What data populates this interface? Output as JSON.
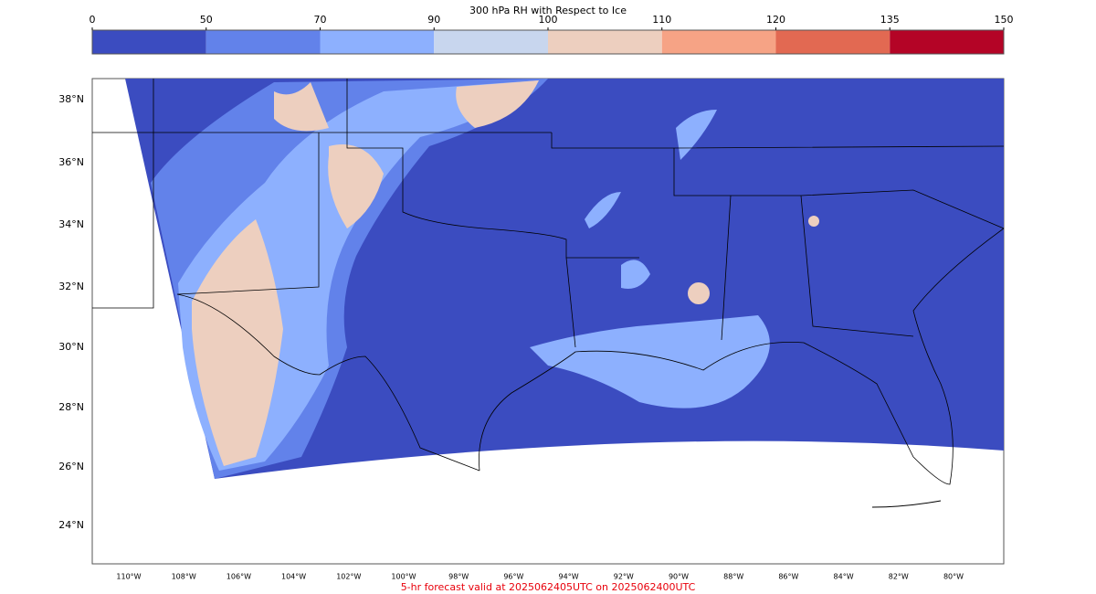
{
  "colorbar": {
    "title": "300 hPa RH with Respect to Ice",
    "ticks": [
      0,
      50,
      70,
      90,
      100,
      110,
      120,
      135,
      150
    ],
    "colors": [
      "#3b4cc0",
      "#6282ea",
      "#8db0fe",
      "#c8d6ee",
      "#edcfbf",
      "#f6a385",
      "#e26952",
      "#b40426"
    ]
  },
  "lat_labels": [
    "38°N",
    "36°N",
    "34°N",
    "32°N",
    "30°N",
    "28°N",
    "26°N",
    "24°N"
  ],
  "lon_labels": [
    "110°W",
    "108°W",
    "106°W",
    "104°W",
    "102°W",
    "100°W",
    "98°W",
    "96°W",
    "94°W",
    "92°W",
    "90°W",
    "88°W",
    "86°W",
    "84°W",
    "82°W",
    "80°W"
  ],
  "footer": "5-hr forecast valid at 2025062405UTC on 2025062400UTC"
}
